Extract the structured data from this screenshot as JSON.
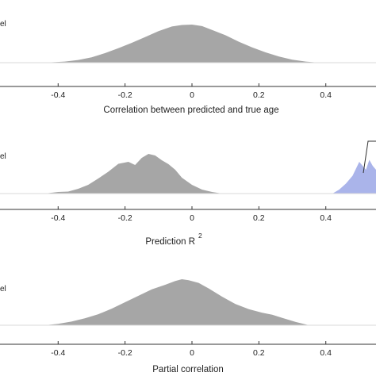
{
  "chart_data": [
    {
      "type": "area",
      "xlabel": "Correlation between predicted and true age",
      "xlim": [
        -0.55,
        0.55
      ],
      "xticks": [
        -0.4,
        -0.2,
        0,
        0.2,
        0.4
      ],
      "xtick_labels": [
        "-0.4",
        "-0.2",
        "0",
        "0.2",
        "0.4"
      ],
      "legend_fragment": "el",
      "series": [
        {
          "color": "#a6a6a6",
          "x": [
            -0.46,
            -0.42,
            -0.38,
            -0.34,
            -0.3,
            -0.26,
            -0.22,
            -0.18,
            -0.14,
            -0.1,
            -0.06,
            -0.03,
            0.0,
            0.03,
            0.06,
            0.1,
            0.14,
            0.18,
            0.22,
            0.26,
            0.3,
            0.34,
            0.38
          ],
          "y": [
            0.0,
            0.01,
            0.03,
            0.07,
            0.14,
            0.25,
            0.38,
            0.52,
            0.67,
            0.83,
            0.95,
            0.99,
            1.0,
            0.96,
            0.86,
            0.72,
            0.55,
            0.4,
            0.27,
            0.16,
            0.08,
            0.03,
            0.0
          ]
        }
      ]
    },
    {
      "type": "area",
      "xlabel": "Prediction R",
      "xlabel_superscript": "2",
      "xlim": [
        -0.55,
        0.55
      ],
      "xticks": [
        -0.4,
        -0.2,
        0,
        0.2,
        0.4
      ],
      "xtick_labels": [
        "-0.4",
        "-0.2",
        "0",
        "0.2",
        "0.4"
      ],
      "legend_fragment": "el",
      "series": [
        {
          "color": "#a6a6a6",
          "x": [
            -0.44,
            -0.4,
            -0.37,
            -0.34,
            -0.31,
            -0.28,
            -0.25,
            -0.22,
            -0.19,
            -0.17,
            -0.15,
            -0.13,
            -0.11,
            -0.09,
            -0.07,
            -0.05,
            -0.03,
            0.0,
            0.03,
            0.06,
            0.09
          ],
          "y": [
            0.0,
            0.04,
            0.05,
            0.12,
            0.22,
            0.38,
            0.55,
            0.75,
            0.8,
            0.72,
            0.9,
            1.0,
            0.96,
            0.84,
            0.74,
            0.6,
            0.4,
            0.22,
            0.1,
            0.04,
            0.0
          ]
        },
        {
          "color": "#aab4ea",
          "x": [
            0.42,
            0.44,
            0.46,
            0.48,
            0.5,
            0.51,
            0.52,
            0.53,
            0.54,
            0.55
          ],
          "y": [
            0.0,
            0.1,
            0.25,
            0.45,
            0.8,
            0.7,
            0.6,
            0.85,
            0.7,
            0.6
          ]
        }
      ]
    },
    {
      "type": "area",
      "xlabel": "Partial correlation",
      "xlim": [
        -0.55,
        0.55
      ],
      "xticks": [
        -0.4,
        -0.2,
        0,
        0.2,
        0.4
      ],
      "xtick_labels": [
        "-0.4",
        "-0.2",
        "0",
        "0.2",
        "0.4"
      ],
      "legend_fragment": "el",
      "series": [
        {
          "color": "#a6a6a6",
          "x": [
            -0.44,
            -0.4,
            -0.36,
            -0.32,
            -0.28,
            -0.24,
            -0.2,
            -0.16,
            -0.12,
            -0.08,
            -0.05,
            -0.03,
            -0.01,
            0.02,
            0.05,
            0.09,
            0.13,
            0.17,
            0.21,
            0.24,
            0.27,
            0.31,
            0.35
          ],
          "y": [
            0.0,
            0.03,
            0.08,
            0.15,
            0.24,
            0.36,
            0.5,
            0.64,
            0.78,
            0.88,
            0.96,
            1.0,
            0.98,
            0.92,
            0.8,
            0.62,
            0.46,
            0.35,
            0.27,
            0.23,
            0.16,
            0.07,
            0.0
          ]
        }
      ]
    }
  ]
}
